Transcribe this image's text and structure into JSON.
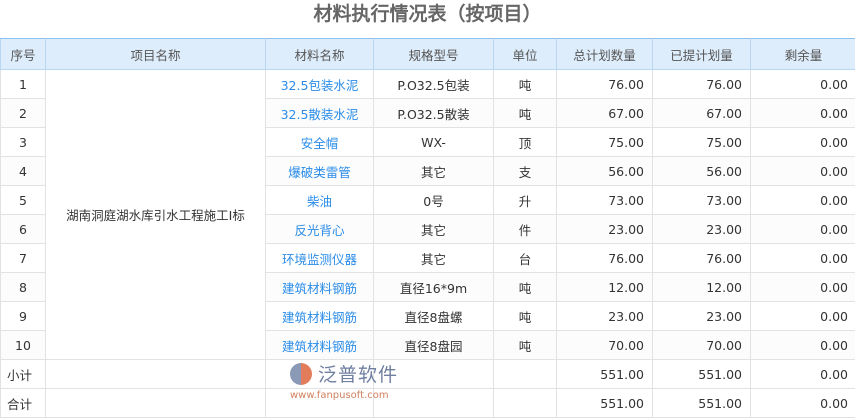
{
  "title": "材料执行情况表（按项目）",
  "headers": [
    "序号",
    "项目名称",
    "材料名称",
    "规格型号",
    "单位",
    "总计划数量",
    "已提计划量",
    "剩余量"
  ],
  "project": "湖南洞庭湖水库引水工程施工I标",
  "rows": [
    {
      "no": "1",
      "material": "32.5包装水泥",
      "spec": "P.O32.5包装",
      "unit": "吨",
      "total": "76.00",
      "done": "76.00",
      "remain": "0.00"
    },
    {
      "no": "2",
      "material": "32.5散装水泥",
      "spec": "P.O32.5散装",
      "unit": "吨",
      "total": "67.00",
      "done": "67.00",
      "remain": "0.00"
    },
    {
      "no": "3",
      "material": "安全帽",
      "spec": "WX-",
      "unit": "顶",
      "total": "75.00",
      "done": "75.00",
      "remain": "0.00"
    },
    {
      "no": "4",
      "material": "爆破类雷管",
      "spec": "其它",
      "unit": "支",
      "total": "56.00",
      "done": "56.00",
      "remain": "0.00"
    },
    {
      "no": "5",
      "material": "柴油",
      "spec": "0号",
      "unit": "升",
      "total": "73.00",
      "done": "73.00",
      "remain": "0.00"
    },
    {
      "no": "6",
      "material": "反光背心",
      "spec": "其它",
      "unit": "件",
      "total": "23.00",
      "done": "23.00",
      "remain": "0.00"
    },
    {
      "no": "7",
      "material": "环境监测仪器",
      "spec": "其它",
      "unit": "台",
      "total": "76.00",
      "done": "76.00",
      "remain": "0.00"
    },
    {
      "no": "8",
      "material": "建筑材料钢筋",
      "spec": "直径16*9m",
      "unit": "吨",
      "total": "12.00",
      "done": "12.00",
      "remain": "0.00"
    },
    {
      "no": "9",
      "material": "建筑材料钢筋",
      "spec": "直径8盘螺",
      "unit": "吨",
      "total": "23.00",
      "done": "23.00",
      "remain": "0.00"
    },
    {
      "no": "10",
      "material": "建筑材料钢筋",
      "spec": "直径8盘园",
      "unit": "吨",
      "total": "70.00",
      "done": "70.00",
      "remain": "0.00"
    }
  ],
  "subtotal": {
    "label": "小计",
    "total": "551.00",
    "done": "551.00",
    "remain": "0.00"
  },
  "grandtotal": {
    "label": "合计",
    "total": "551.00",
    "done": "551.00",
    "remain": "0.00"
  },
  "watermark": {
    "name": "泛普软件",
    "url": "www.fanpusoft.com"
  }
}
